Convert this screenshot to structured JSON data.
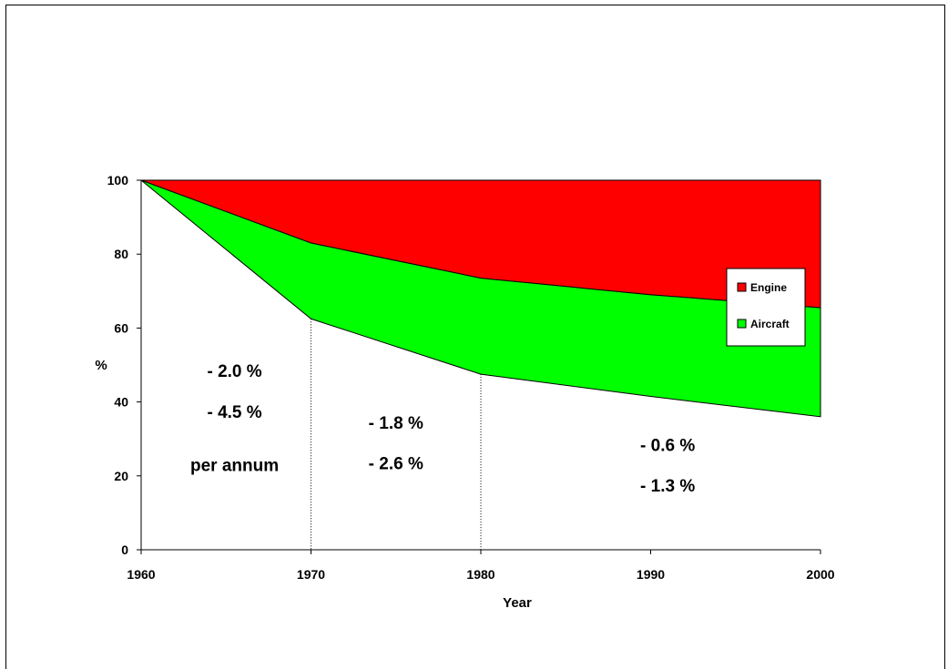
{
  "chart_data": {
    "type": "area",
    "xlabel": "Year",
    "ylabel": "%",
    "x": [
      1960,
      1970,
      1980,
      1990,
      2000
    ],
    "xlim": [
      1960,
      2000
    ],
    "ylim": [
      0,
      100
    ],
    "x_ticks": [
      "1960",
      "1970",
      "1980",
      "1990",
      "2000"
    ],
    "y_ticks": [
      "0",
      "20",
      "40",
      "60",
      "80",
      "100"
    ],
    "grid": false,
    "legend_position": "right",
    "series": [
      {
        "name": "Engine",
        "color": "#ff0000",
        "values": [
          100,
          83,
          73.5,
          69,
          65.5
        ]
      },
      {
        "name": "Aircraft",
        "color": "#00ff00",
        "values": [
          100,
          62.5,
          47.5,
          41.5,
          36
        ]
      }
    ],
    "top_value": 100,
    "annotations": [
      {
        "text": "- 2.0 %",
        "x": 1965.5,
        "y": 48.5
      },
      {
        "text": "- 4.5 %",
        "x": 1965.5,
        "y": 37.5
      },
      {
        "text": "per annum",
        "x": 1965.5,
        "y": 23
      },
      {
        "text": "- 1.8 %",
        "x": 1975,
        "y": 34.5
      },
      {
        "text": "- 2.6 %",
        "x": 1975,
        "y": 23.5
      },
      {
        "text": "- 0.6 %",
        "x": 1991,
        "y": 28.5
      },
      {
        "text": "- 1.3 %",
        "x": 1991,
        "y": 17.5
      }
    ],
    "dotted_lines_at": [
      1970,
      1980
    ]
  }
}
